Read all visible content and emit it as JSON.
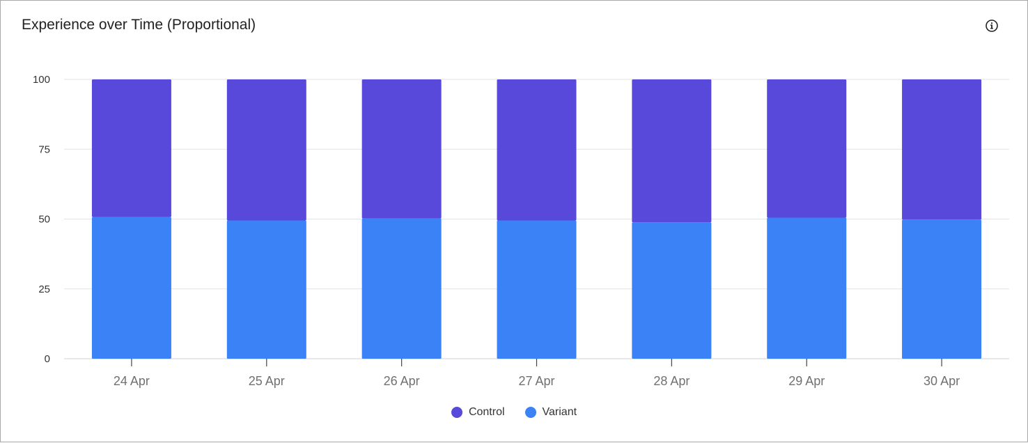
{
  "header": {
    "title": "Experience over Time (Proportional)",
    "info_icon": "info-circle-icon"
  },
  "colors": {
    "control": "#5849db",
    "variant": "#3b82f6",
    "grid": "#e3e3e3",
    "axis": "#d0d0d0"
  },
  "chart_data": {
    "type": "bar",
    "stacked": true,
    "categories": [
      "24 Apr",
      "25 Apr",
      "26 Apr",
      "27 Apr",
      "28 Apr",
      "29 Apr",
      "30 Apr"
    ],
    "series": [
      {
        "name": "Variant",
        "values": [
          50.7,
          49.5,
          50.2,
          49.5,
          48.8,
          50.5,
          49.8
        ]
      },
      {
        "name": "Control",
        "values": [
          49.3,
          50.5,
          49.8,
          50.5,
          51.2,
          49.5,
          50.2
        ]
      }
    ],
    "ylim": [
      0,
      100
    ],
    "yticks": [
      0,
      25,
      50,
      75,
      100
    ],
    "grid": true,
    "legend_position": "bottom-center"
  },
  "legend": [
    {
      "label": "Control",
      "color": "#5849db"
    },
    {
      "label": "Variant",
      "color": "#3b82f6"
    }
  ]
}
